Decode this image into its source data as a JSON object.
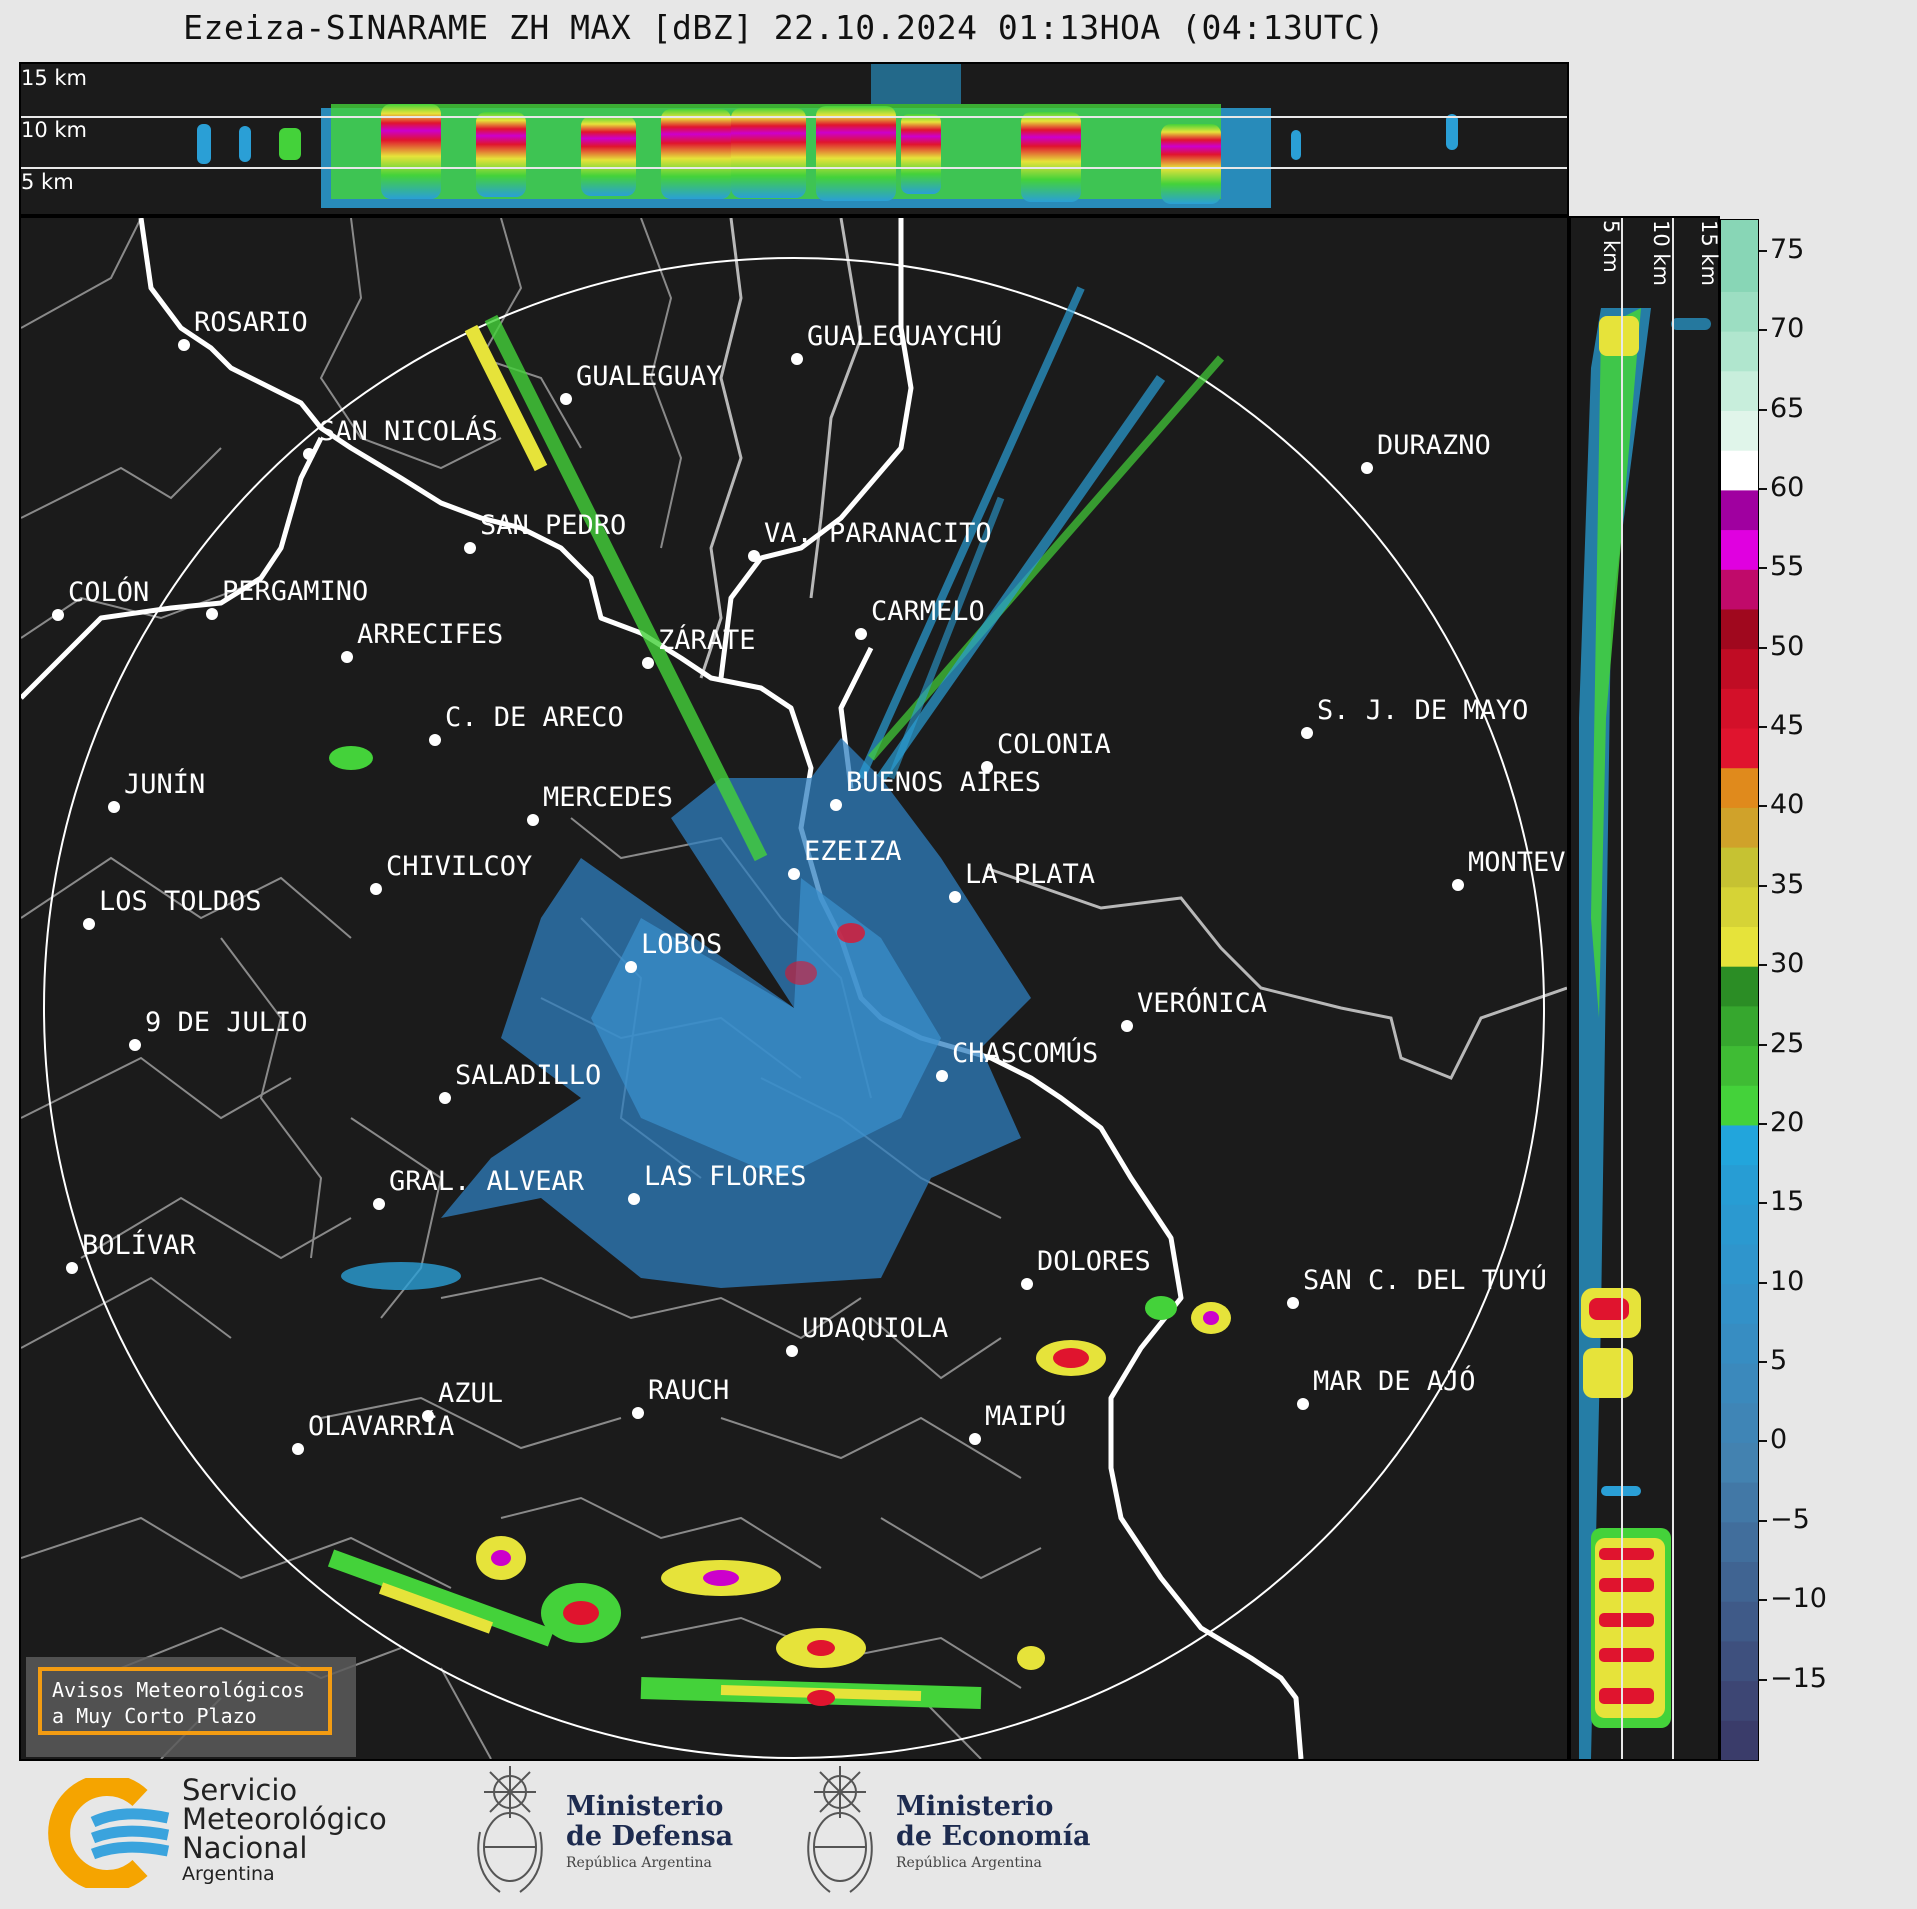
{
  "title": "Ezeiza-SINARAME ZH MAX [dBZ] 22.10.2024 01:13HOA (04:13UTC)",
  "top_panel": {
    "height_labels": [
      "15 km",
      "10 km",
      "5 km"
    ]
  },
  "side_panel": {
    "height_labels": [
      "5 km",
      "10 km",
      "15 km"
    ]
  },
  "colorbar": {
    "unit": "dBZ",
    "ticks": [
      "75",
      "70",
      "65",
      "60",
      "55",
      "50",
      "45",
      "40",
      "35",
      "30",
      "25",
      "20",
      "15",
      "10",
      "5",
      "0",
      "−5",
      "−10",
      "−15"
    ],
    "tick_values": [
      75,
      70,
      65,
      60,
      55,
      50,
      45,
      40,
      35,
      30,
      25,
      20,
      15,
      10,
      5,
      0,
      -5,
      -10,
      -15
    ],
    "range": [
      -20,
      77
    ]
  },
  "cities": [
    {
      "name": "ROSARIO"
    },
    {
      "name": "GUALEGUAYCHÚ"
    },
    {
      "name": "GUALEGUAY"
    },
    {
      "name": "SAN NICOLÁS"
    },
    {
      "name": "DURAZNO"
    },
    {
      "name": "SAN PEDRO"
    },
    {
      "name": "VA. PARANACITO"
    },
    {
      "name": "COLÓN"
    },
    {
      "name": "PERGAMINO"
    },
    {
      "name": "CARMELO"
    },
    {
      "name": "ARRECIFES"
    },
    {
      "name": "ZÁRATE"
    },
    {
      "name": "C. DE ARECO"
    },
    {
      "name": "S. J. DE MAYO"
    },
    {
      "name": "COLONIA"
    },
    {
      "name": "JUNÍN"
    },
    {
      "name": "BUENOS AIRES"
    },
    {
      "name": "MERCEDES"
    },
    {
      "name": "EZEIZA"
    },
    {
      "name": "MONTEVIDEO"
    },
    {
      "name": "CHIVILCOY"
    },
    {
      "name": "LA PLATA"
    },
    {
      "name": "LOS TOLDOS"
    },
    {
      "name": "LOBOS"
    },
    {
      "name": "VERÓNICA"
    },
    {
      "name": "9 DE JULIO"
    },
    {
      "name": "CHASCOMÚS"
    },
    {
      "name": "SALADILLO"
    },
    {
      "name": "GRAL. ALVEAR"
    },
    {
      "name": "LAS FLORES"
    },
    {
      "name": "BOLÍVAR"
    },
    {
      "name": "DOLORES"
    },
    {
      "name": "SAN C. DEL TUYÚ"
    },
    {
      "name": "UDAQUIOLA"
    },
    {
      "name": "RAUCH"
    },
    {
      "name": "MAR DE AJÓ"
    },
    {
      "name": "AZUL"
    },
    {
      "name": "OLAVARRÍA"
    },
    {
      "name": "MAIPÚ"
    }
  ],
  "warning": {
    "line1": "Avisos Meteorológicos",
    "line2": "a Muy Corto Plazo"
  },
  "footer": {
    "smn": {
      "line1": "Servicio",
      "line2": "Meteorológico",
      "line3": "Nacional",
      "line4": "Argentina"
    },
    "defensa": {
      "line1": "Ministerio",
      "line2": "de Defensa",
      "line3": "República Argentina"
    },
    "economia": {
      "line1": "Ministerio",
      "line2": "de Economía",
      "line3": "República Argentina"
    }
  }
}
